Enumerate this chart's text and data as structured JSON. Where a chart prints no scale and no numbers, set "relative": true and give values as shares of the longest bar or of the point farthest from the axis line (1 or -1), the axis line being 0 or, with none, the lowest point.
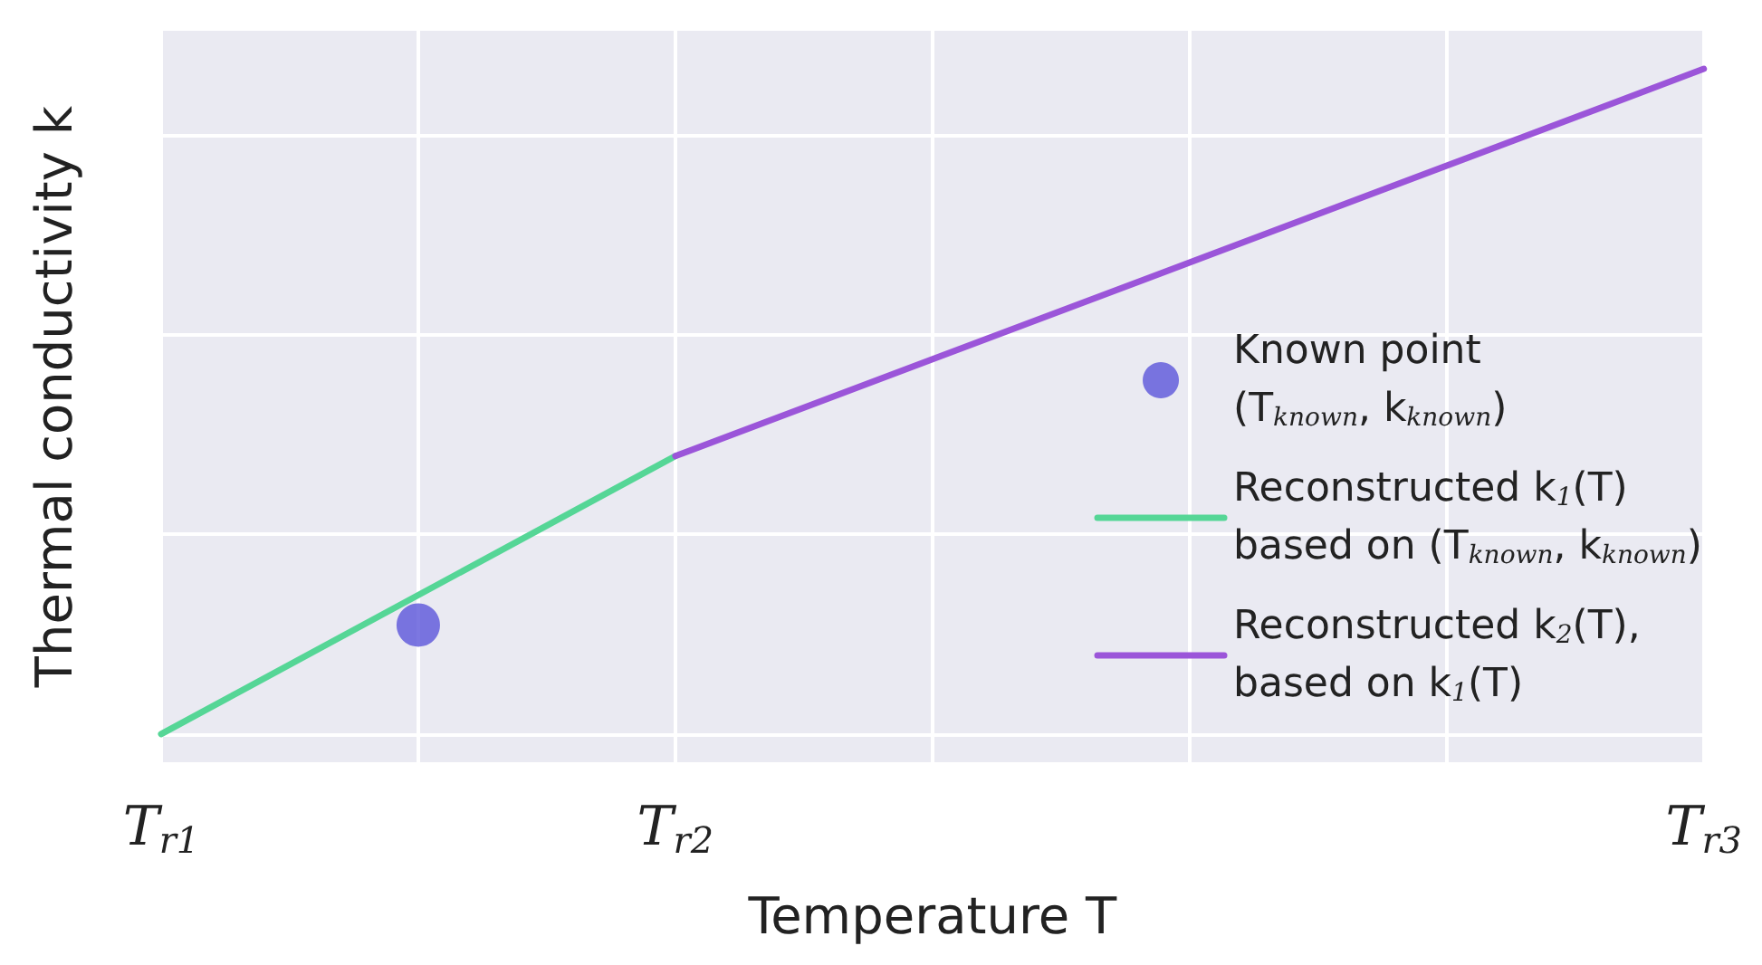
{
  "chart_data": {
    "type": "line",
    "relative": true,
    "xlabel": "Temperature T",
    "ylabel": "Thermal conductivity k",
    "categories": [
      "T$_{r1}$",
      null,
      "T$_{r2}$",
      null,
      null,
      null,
      "T$_{r3}$"
    ],
    "grid": true,
    "legend": "right",
    "series": [
      {
        "name": "Known point\n(T$_{known}$, k$_{known}$)",
        "type": "scatter",
        "marker": "circle",
        "color": "#5b55d9",
        "values": [
          null,
          0.164,
          null,
          null,
          null,
          null,
          null
        ]
      },
      {
        "name": "Reconstructed k$_{1}$(T)\nbased on (T$_{known}$, k$_{known}$)",
        "marker": "none",
        "color": "#55d696",
        "values": [
          0,
          null,
          0.418,
          null,
          null,
          null,
          null
        ]
      },
      {
        "name": "Reconstructed k$_{2}$(T),\nbased on k$_{1}$(T)",
        "marker": "none",
        "color": "#9b55d9",
        "values": [
          null,
          null,
          0.418,
          null,
          null,
          null,
          1
        ]
      }
    ]
  }
}
